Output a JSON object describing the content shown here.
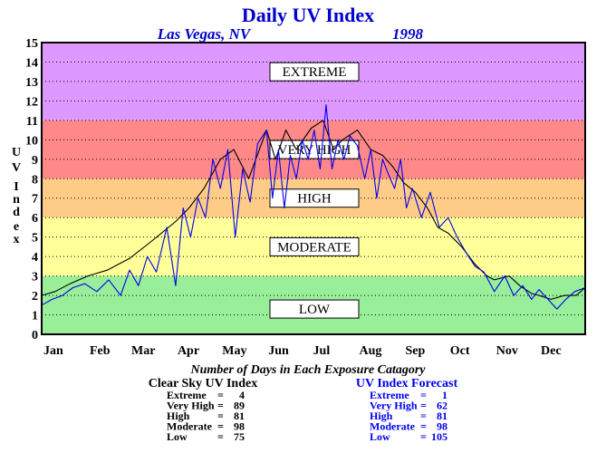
{
  "chart_data": {
    "type": "line",
    "title": "Daily UV Index",
    "location": "Las Vegas, NV",
    "year": "1998",
    "ylabel": "UV Index",
    "ylim": [
      0,
      15
    ],
    "yticks": [
      "0",
      "1",
      "2",
      "3",
      "4",
      "5",
      "6",
      "7",
      "8",
      "9",
      "10",
      "11",
      "12",
      "13",
      "14",
      "15"
    ],
    "xlim": [
      1,
      366
    ],
    "months": [
      {
        "label": "Jan",
        "day": 1
      },
      {
        "label": "Feb",
        "day": 32
      },
      {
        "label": "Mar",
        "day": 60
      },
      {
        "label": "Apr",
        "day": 91
      },
      {
        "label": "May",
        "day": 121
      },
      {
        "label": "Jun",
        "day": 152
      },
      {
        "label": "Jul",
        "day": 182
      },
      {
        "label": "Aug",
        "day": 213
      },
      {
        "label": "Sep",
        "day": 244
      },
      {
        "label": "Oct",
        "day": 274
      },
      {
        "label": "Nov",
        "day": 305
      },
      {
        "label": "Dec",
        "day": 335
      }
    ],
    "grid": true,
    "bands": [
      {
        "label": "LOW",
        "from": 0,
        "to": 3,
        "color": "#99ee99",
        "label_y": 1.3
      },
      {
        "label": "MODERATE",
        "from": 3,
        "to": 6,
        "color": "#ffff99",
        "label_y": 4.5
      },
      {
        "label": "HIGH",
        "from": 6,
        "to": 8,
        "color": "#ffcc88",
        "label_y": 7
      },
      {
        "label": "VERY HIGH",
        "from": 8,
        "to": 11,
        "color": "#ff8888",
        "label_y": 9.5
      },
      {
        "label": "EXTREME",
        "from": 11,
        "to": 15,
        "color": "#dd99ff",
        "label_y": 13.5
      }
    ],
    "series": [
      {
        "name": "Clear Sky UV Index",
        "color": "#000000",
        "x": [
          1,
          10,
          20,
          32,
          45,
          60,
          75,
          91,
          100,
          110,
          121,
          130,
          140,
          152,
          158,
          165,
          172,
          182,
          190,
          197,
          203,
          213,
          222,
          230,
          237,
          244,
          252,
          260,
          267,
          274,
          283,
          292,
          300,
          305,
          315,
          322,
          330,
          335,
          343,
          352,
          360,
          366
        ],
        "y": [
          2.0,
          2.2,
          2.6,
          3.0,
          3.3,
          3.9,
          4.8,
          5.8,
          6.5,
          7.5,
          9.0,
          9.5,
          8.0,
          10.5,
          9.0,
          10.5,
          9.5,
          10.6,
          11.0,
          9.5,
          10.0,
          10.5,
          9.5,
          9.2,
          8.6,
          7.8,
          7.3,
          6.5,
          5.5,
          5.2,
          4.5,
          3.6,
          3.0,
          2.8,
          3.0,
          2.5,
          2.1,
          2.0,
          1.8,
          2.0,
          2.0,
          2.4
        ]
      },
      {
        "name": "UV Index Forecast",
        "color": "#0000ee",
        "x": [
          1,
          8,
          15,
          22,
          30,
          38,
          46,
          54,
          60,
          66,
          72,
          78,
          85,
          91,
          96,
          101,
          106,
          111,
          116,
          121,
          126,
          131,
          136,
          141,
          146,
          152,
          156,
          160,
          164,
          168,
          172,
          176,
          180,
          184,
          188,
          192,
          196,
          200,
          204,
          208,
          213,
          218,
          222,
          226,
          230,
          234,
          238,
          242,
          246,
          250,
          256,
          262,
          268,
          274,
          280,
          286,
          292,
          298,
          305,
          312,
          318,
          324,
          330,
          335,
          341,
          347,
          353,
          359,
          366
        ],
        "y": [
          1.5,
          1.8,
          2.0,
          2.4,
          2.6,
          2.2,
          2.8,
          2.0,
          3.3,
          2.5,
          4.0,
          3.2,
          5.5,
          2.5,
          6.5,
          5.0,
          7.0,
          6.0,
          9.0,
          7.5,
          9.5,
          5.0,
          8.5,
          6.8,
          9.8,
          10.5,
          7.0,
          9.5,
          6.5,
          9.2,
          8.0,
          10.0,
          9.0,
          10.5,
          8.5,
          11.8,
          8.5,
          10.0,
          9.0,
          10.2,
          9.7,
          8.0,
          9.5,
          7.0,
          9.0,
          8.2,
          7.5,
          9.0,
          6.5,
          7.5,
          6.0,
          7.3,
          5.5,
          6.0,
          5.0,
          4.2,
          3.5,
          3.2,
          2.2,
          3.0,
          2.0,
          2.5,
          1.8,
          2.3,
          1.8,
          1.3,
          1.8,
          2.2,
          2.4
        ]
      }
    ],
    "categories_caption": "Number of Days in Each Exposure Catagory",
    "category_counts": [
      {
        "title": "Clear Sky UV Index",
        "color": "#000000",
        "rows": [
          {
            "label": "Extreme",
            "value": "4"
          },
          {
            "label": "Very High",
            "value": "89"
          },
          {
            "label": "High",
            "value": "81"
          },
          {
            "label": "Moderate",
            "value": "98"
          },
          {
            "label": "Low",
            "value": "75"
          }
        ]
      },
      {
        "title": "UV Index Forecast",
        "color": "#0000ee",
        "rows": [
          {
            "label": "Extreme",
            "value": "1"
          },
          {
            "label": "Very High",
            "value": "62"
          },
          {
            "label": "High",
            "value": "81"
          },
          {
            "label": "Moderate",
            "value": "98"
          },
          {
            "label": "Low",
            "value": "105"
          }
        ]
      }
    ]
  }
}
